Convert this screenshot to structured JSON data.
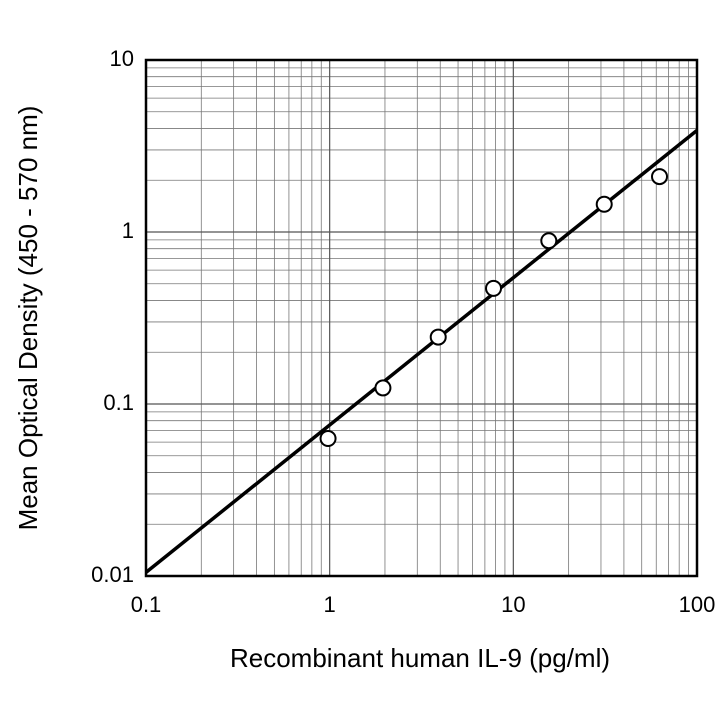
{
  "chart_data": {
    "type": "scatter",
    "x_label": "Recombinant human IL-9 (pg/ml)",
    "y_label": "Mean Optical Density (450 - 570 nm)",
    "x": [
      0.98,
      1.95,
      3.9,
      7.8,
      15.6,
      31.25,
      62.5
    ],
    "values": [
      0.063,
      0.124,
      0.245,
      0.47,
      0.89,
      1.45,
      2.1
    ],
    "fit_line": {
      "x": [
        0.1,
        100
      ],
      "values": [
        0.0105,
        3.9
      ]
    },
    "xlim": [
      0.1,
      100
    ],
    "ylim": [
      0.01,
      10
    ],
    "xticks": [
      0.1,
      1,
      10,
      100
    ],
    "yticks": [
      0.01,
      0.1,
      1,
      10
    ],
    "xscale": "log",
    "yscale": "log",
    "grid": true,
    "marker_fill": "#ffffff",
    "color": "#000000"
  }
}
